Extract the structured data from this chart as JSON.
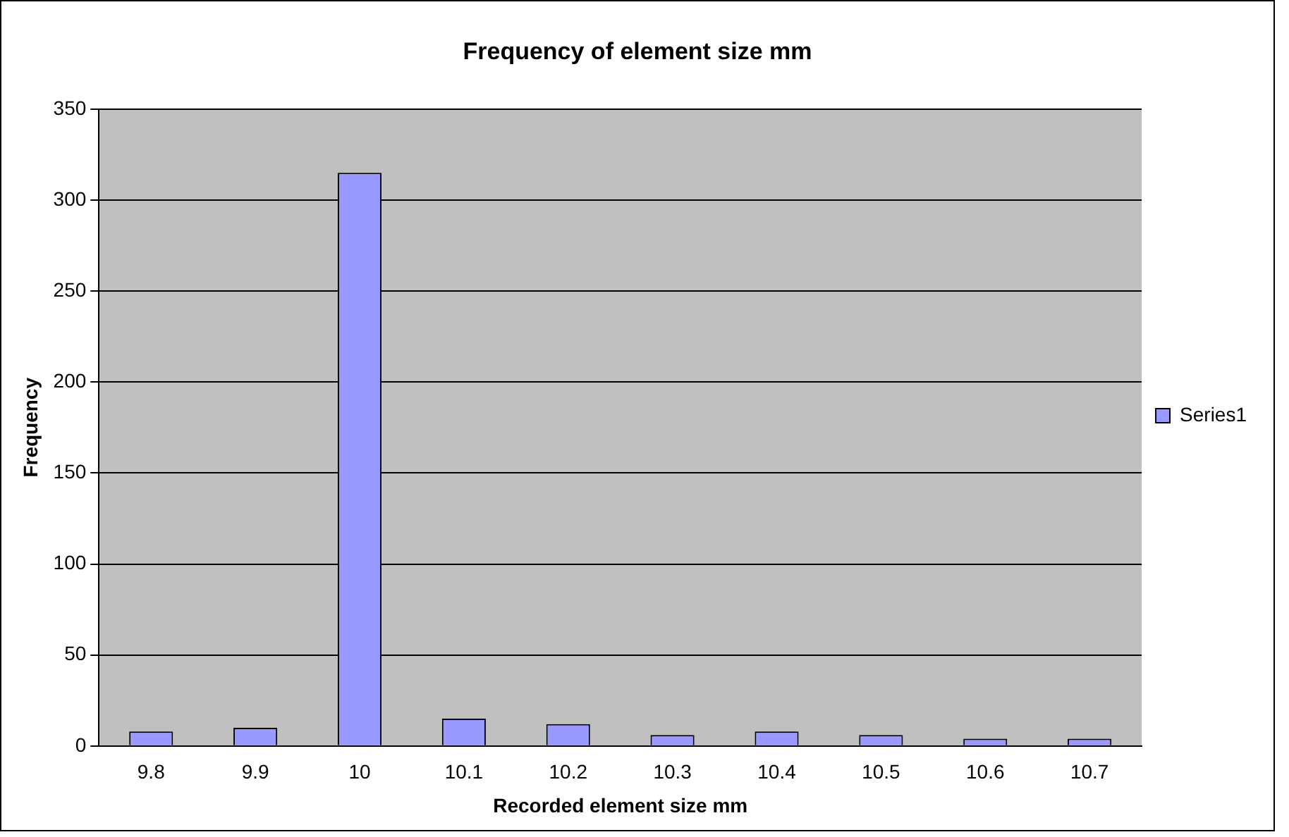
{
  "chart_data": {
    "type": "bar",
    "title": "Frequency of element size mm",
    "xlabel": "Recorded element size mm",
    "ylabel": "Frequency",
    "categories": [
      "9.8",
      "9.9",
      "10",
      "10.1",
      "10.2",
      "10.3",
      "10.4",
      "10.5",
      "10.6",
      "10.7"
    ],
    "series": [
      {
        "name": "Series1",
        "color": "#9999ff",
        "values": [
          8,
          10,
          315,
          15,
          12,
          6,
          8,
          6,
          4,
          4
        ]
      }
    ],
    "ylim": [
      0,
      350
    ],
    "yticks": [
      0,
      50,
      100,
      150,
      200,
      250,
      300,
      350
    ],
    "grid": "y",
    "legend": "right"
  }
}
